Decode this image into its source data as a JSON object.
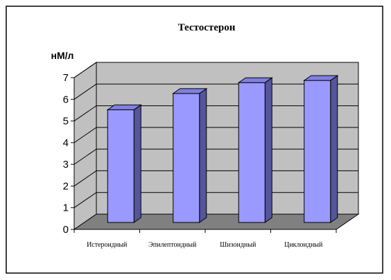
{
  "chart_data": {
    "type": "bar",
    "title": "Тестостерон",
    "ylabel": "нМ/л",
    "xlabel": "",
    "categories": [
      "Истероидный",
      "Эпилептоидный",
      "Шизоидный",
      "Циклоидный"
    ],
    "values": [
      5.2,
      5.95,
      6.45,
      6.55
    ],
    "ylim": [
      0,
      7
    ],
    "yticks": [
      0,
      1,
      2,
      3,
      4,
      5,
      6,
      7
    ],
    "grid": true,
    "legend": "none",
    "three_d": true
  },
  "colors": {
    "bar_front": "#9999ff",
    "bar_top": "#8080e0",
    "bar_side": "#55559a",
    "back_wall": "#c0c0c0",
    "floor": "#808080"
  }
}
